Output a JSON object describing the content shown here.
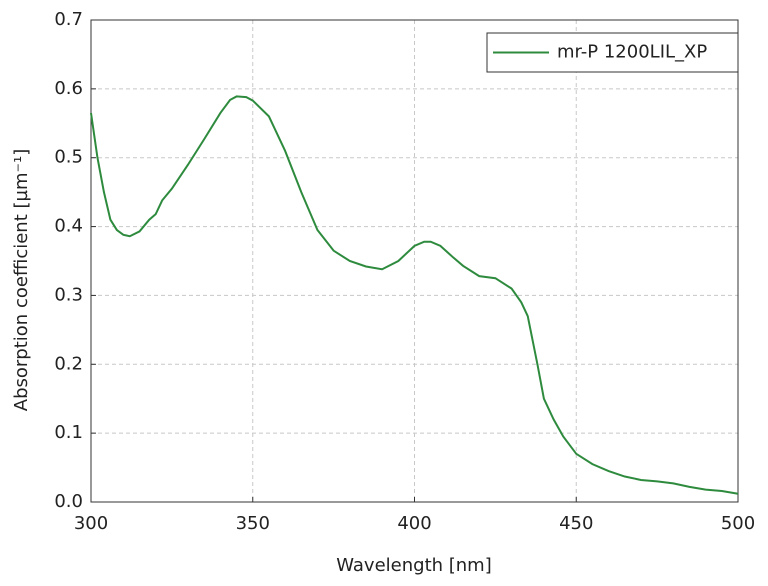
{
  "chart_data": {
    "type": "line",
    "xlabel": "Wavelength [nm]",
    "ylabel": "Absorption coefficient [µm⁻¹]",
    "x": [
      300,
      302,
      304,
      306,
      308,
      310,
      312,
      315,
      318,
      320,
      322,
      325,
      330,
      335,
      340,
      343,
      345,
      348,
      350,
      355,
      360,
      365,
      370,
      375,
      380,
      385,
      390,
      395,
      400,
      403,
      405,
      408,
      412,
      415,
      420,
      425,
      430,
      433,
      435,
      438,
      440,
      443,
      446,
      450,
      455,
      460,
      465,
      470,
      475,
      480,
      485,
      490,
      495,
      500
    ],
    "series": [
      {
        "name": "mr-P 1200LIL_XP",
        "color": "#2e8b3e",
        "values": [
          0.565,
          0.5,
          0.45,
          0.41,
          0.395,
          0.388,
          0.386,
          0.393,
          0.41,
          0.418,
          0.438,
          0.455,
          0.49,
          0.527,
          0.565,
          0.584,
          0.589,
          0.588,
          0.583,
          0.56,
          0.51,
          0.45,
          0.395,
          0.365,
          0.35,
          0.342,
          0.338,
          0.35,
          0.372,
          0.378,
          0.378,
          0.372,
          0.355,
          0.343,
          0.328,
          0.325,
          0.31,
          0.29,
          0.27,
          0.2,
          0.15,
          0.12,
          0.095,
          0.07,
          0.055,
          0.045,
          0.037,
          0.032,
          0.03,
          0.027,
          0.022,
          0.018,
          0.016,
          0.012
        ]
      }
    ],
    "xlim": [
      300,
      500
    ],
    "xticks": [
      300,
      350,
      400,
      450,
      500
    ],
    "ylim": [
      0,
      0.7
    ],
    "yticks": [
      {
        "value": 0,
        "label": "0.0"
      },
      0.1,
      0.2,
      0.3,
      0.4,
      0.5,
      0.6,
      0.7
    ],
    "grid": true,
    "legend": "upper right"
  }
}
